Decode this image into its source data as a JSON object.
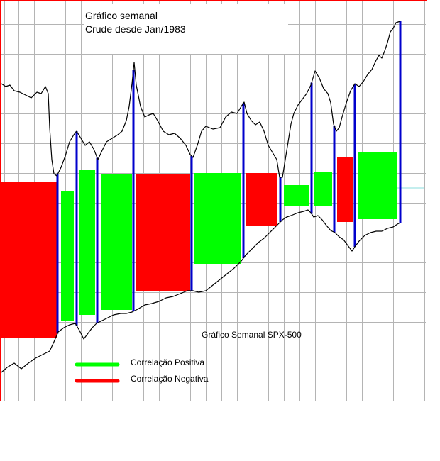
{
  "chart_data": {
    "type": "line",
    "title_lines": [
      "Gráfico semanal",
      "Crude desde Jan/1983"
    ],
    "spx_label": "Gráfico Semanal SPX-500",
    "legend": [
      {
        "label": "Correlação Positiva",
        "color": "#00ff00"
      },
      {
        "label": "Correlação Negativa",
        "color": "#ff0000"
      }
    ],
    "grid": true,
    "legend_position": "bottom-left",
    "colors": {
      "positive": "#00ff00",
      "negative": "#ff0000",
      "turning_point": "#0000cc",
      "line": "#000000",
      "grid": "#b4b4b4",
      "frame": "#ff0000",
      "level": "#88dddd"
    },
    "series": [
      {
        "id": "crude",
        "points": [
          [
            2,
            118
          ],
          [
            8,
            122
          ],
          [
            14,
            120
          ],
          [
            20,
            128
          ],
          [
            28,
            130
          ],
          [
            36,
            134
          ],
          [
            44,
            138
          ],
          [
            52,
            130
          ],
          [
            58,
            132
          ],
          [
            64,
            122
          ],
          [
            68,
            132
          ],
          [
            70,
            180
          ],
          [
            73,
            225
          ],
          [
            76,
            245
          ],
          [
            80,
            248
          ],
          [
            86,
            236
          ],
          [
            92,
            220
          ],
          [
            98,
            200
          ],
          [
            104,
            190
          ],
          [
            108,
            185
          ],
          [
            114,
            195
          ],
          [
            120,
            205
          ],
          [
            126,
            200
          ],
          [
            132,
            210
          ],
          [
            138,
            225
          ],
          [
            144,
            212
          ],
          [
            150,
            200
          ],
          [
            158,
            195
          ],
          [
            166,
            190
          ],
          [
            172,
            185
          ],
          [
            178,
            170
          ],
          [
            182,
            150
          ],
          [
            186,
            118
          ],
          [
            189,
            88
          ],
          [
            192,
            120
          ],
          [
            198,
            150
          ],
          [
            204,
            165
          ],
          [
            210,
            162
          ],
          [
            216,
            160
          ],
          [
            222,
            170
          ],
          [
            230,
            185
          ],
          [
            238,
            190
          ],
          [
            246,
            188
          ],
          [
            254,
            195
          ],
          [
            262,
            205
          ],
          [
            268,
            218
          ],
          [
            272,
            222
          ],
          [
            278,
            205
          ],
          [
            284,
            185
          ],
          [
            290,
            178
          ],
          [
            300,
            182
          ],
          [
            310,
            180
          ],
          [
            318,
            165
          ],
          [
            326,
            158
          ],
          [
            334,
            160
          ],
          [
            340,
            150
          ],
          [
            344,
            144
          ],
          [
            348,
            160
          ],
          [
            354,
            170
          ],
          [
            360,
            176
          ],
          [
            366,
            172
          ],
          [
            372,
            185
          ],
          [
            378,
            205
          ],
          [
            384,
            215
          ],
          [
            390,
            225
          ],
          [
            394,
            250
          ],
          [
            398,
            250
          ],
          [
            402,
            225
          ],
          [
            406,
            200
          ],
          [
            410,
            175
          ],
          [
            414,
            160
          ],
          [
            420,
            148
          ],
          [
            426,
            140
          ],
          [
            432,
            132
          ],
          [
            438,
            120
          ],
          [
            444,
            100
          ],
          [
            450,
            110
          ],
          [
            456,
            125
          ],
          [
            462,
            132
          ],
          [
            466,
            145
          ],
          [
            470,
            175
          ],
          [
            474,
            185
          ],
          [
            478,
            180
          ],
          [
            482,
            165
          ],
          [
            488,
            145
          ],
          [
            494,
            128
          ],
          [
            500,
            118
          ],
          [
            506,
            122
          ],
          [
            512,
            115
          ],
          [
            518,
            105
          ],
          [
            524,
            98
          ],
          [
            530,
            85
          ],
          [
            534,
            78
          ],
          [
            538,
            82
          ],
          [
            542,
            72
          ],
          [
            546,
            60
          ],
          [
            550,
            45
          ],
          [
            554,
            40
          ],
          [
            558,
            32
          ],
          [
            564,
            30
          ]
        ]
      },
      {
        "id": "spx",
        "points": [
          [
            2,
            525
          ],
          [
            10,
            518
          ],
          [
            20,
            512
          ],
          [
            30,
            520
          ],
          [
            40,
            512
          ],
          [
            50,
            505
          ],
          [
            60,
            500
          ],
          [
            70,
            495
          ],
          [
            76,
            482
          ],
          [
            82,
            468
          ],
          [
            90,
            462
          ],
          [
            98,
            458
          ],
          [
            106,
            456
          ],
          [
            112,
            466
          ],
          [
            118,
            478
          ],
          [
            124,
            470
          ],
          [
            130,
            462
          ],
          [
            136,
            456
          ],
          [
            144,
            452
          ],
          [
            152,
            448
          ],
          [
            160,
            444
          ],
          [
            170,
            442
          ],
          [
            178,
            442
          ],
          [
            186,
            440
          ],
          [
            194,
            436
          ],
          [
            204,
            430
          ],
          [
            214,
            428
          ],
          [
            224,
            425
          ],
          [
            234,
            420
          ],
          [
            244,
            418
          ],
          [
            254,
            414
          ],
          [
            264,
            410
          ],
          [
            272,
            410
          ],
          [
            280,
            412
          ],
          [
            290,
            410
          ],
          [
            300,
            402
          ],
          [
            310,
            394
          ],
          [
            320,
            386
          ],
          [
            330,
            378
          ],
          [
            340,
            368
          ],
          [
            346,
            360
          ],
          [
            352,
            354
          ],
          [
            358,
            348
          ],
          [
            364,
            342
          ],
          [
            372,
            336
          ],
          [
            380,
            328
          ],
          [
            390,
            318
          ],
          [
            398,
            310
          ],
          [
            404,
            306
          ],
          [
            410,
            304
          ],
          [
            420,
            300
          ],
          [
            428,
            298
          ],
          [
            434,
            296
          ],
          [
            438,
            300
          ],
          [
            442,
            306
          ],
          [
            448,
            304
          ],
          [
            454,
            310
          ],
          [
            460,
            318
          ],
          [
            466,
            325
          ],
          [
            472,
            328
          ],
          [
            478,
            334
          ],
          [
            484,
            338
          ],
          [
            490,
            346
          ],
          [
            496,
            354
          ],
          [
            500,
            348
          ],
          [
            506,
            340
          ],
          [
            514,
            332
          ],
          [
            522,
            328
          ],
          [
            530,
            326
          ],
          [
            538,
            326
          ],
          [
            546,
            322
          ],
          [
            554,
            320
          ],
          [
            560,
            316
          ],
          [
            564,
            314
          ]
        ]
      }
    ],
    "correlation_periods": [
      {
        "index": 1,
        "sign": "negative",
        "spx_value": 476,
        "crude_value": 256
      },
      {
        "index": 2,
        "sign": "positive",
        "spx_value": 453,
        "crude_value": 269
      },
      {
        "index": 3,
        "sign": "positive",
        "spx_value": 444,
        "crude_value": 239
      },
      {
        "index": 4,
        "sign": "positive",
        "spx_value": 437,
        "crude_value": 246
      },
      {
        "index": 5,
        "sign": "negative",
        "spx_value": 411,
        "crude_value": 246
      },
      {
        "index": 6,
        "sign": "positive",
        "spx_value": 372,
        "crude_value": 244
      },
      {
        "index": 7,
        "sign": "negative",
        "spx_value": 319,
        "crude_value": 244
      },
      {
        "index": 8,
        "sign": "positive",
        "spx_value": 291,
        "crude_value": 261
      },
      {
        "index": 9,
        "sign": "positive",
        "spx_value": 290,
        "crude_value": 243
      },
      {
        "index": 10,
        "sign": "negative",
        "spx_value": 313,
        "crude_value": 221
      },
      {
        "index": 11,
        "sign": "positive",
        "spx_value": 309,
        "crude_value": 215
      }
    ],
    "turning_points": 12
  }
}
